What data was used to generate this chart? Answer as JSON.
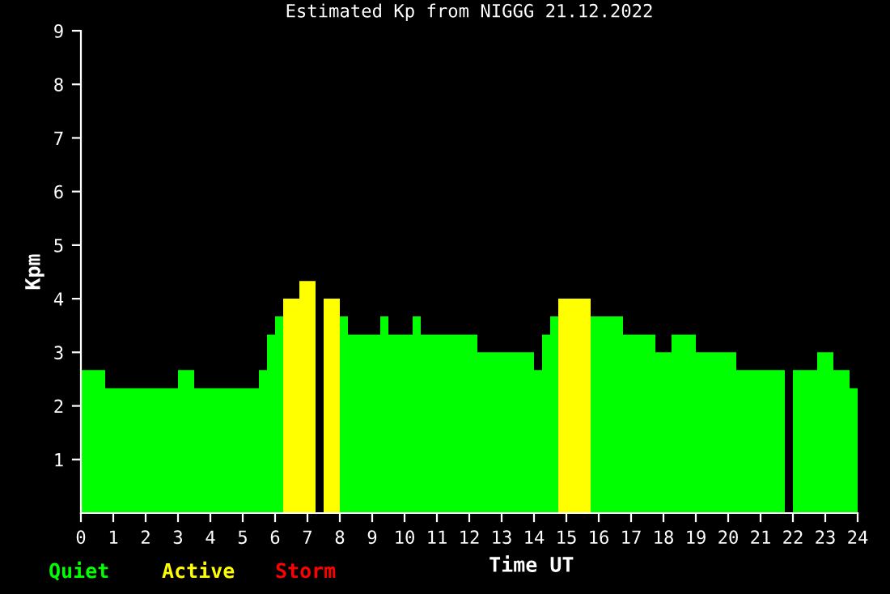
{
  "chart_data": {
    "type": "histogram",
    "title": "Estimated Kp from NIGGG 21.12.2022",
    "xlabel": "Time UT",
    "ylabel": "Kpm",
    "bins": [
      0,
      0.75,
      3,
      3.5,
      5.5,
      5.75,
      6,
      6.25,
      6.75,
      7.25,
      7.5,
      8,
      8.25,
      9.25,
      9.5,
      10.25,
      10.5,
      12.25,
      14,
      14.25,
      14.5,
      14.75,
      15.75,
      16.75,
      17.75,
      18.25,
      19,
      20.25,
      21.75,
      22,
      22.75,
      23.25,
      23.75,
      24
    ],
    "series": [
      {
        "name": "Quiet",
        "color": "#00ff00",
        "values": [
          2.67,
          2.33,
          2.67,
          2.33,
          2.67,
          3.33,
          3.67,
          null,
          null,
          null,
          null,
          3.67,
          3.33,
          3.67,
          3.33,
          3.67,
          3.33,
          3,
          2.67,
          3.33,
          3.67,
          null,
          3.67,
          3.33,
          3,
          3.33,
          3,
          2.67,
          null,
          2.67,
          3,
          2.67,
          2.33
        ]
      },
      {
        "name": "Active",
        "color": "#ffff00",
        "values": [
          null,
          null,
          null,
          null,
          null,
          null,
          null,
          4,
          4.33,
          null,
          4,
          null,
          null,
          null,
          null,
          null,
          null,
          null,
          null,
          null,
          null,
          4,
          null,
          null,
          null,
          null,
          null,
          null,
          null,
          null,
          null,
          null,
          null
        ]
      }
    ],
    "annotations": [
      "Storm"
    ],
    "xlim": [
      0,
      24
    ],
    "xticks": [
      0,
      1,
      2,
      3,
      4,
      5,
      6,
      7,
      8,
      9,
      10,
      11,
      12,
      13,
      14,
      15,
      16,
      17,
      18,
      19,
      20,
      21,
      22,
      23,
      24
    ],
    "ylim": [
      0,
      9
    ],
    "yticks": [
      1,
      2,
      3,
      4,
      5,
      6,
      7,
      8,
      9
    ],
    "grid": false,
    "legend": "bottom left"
  }
}
